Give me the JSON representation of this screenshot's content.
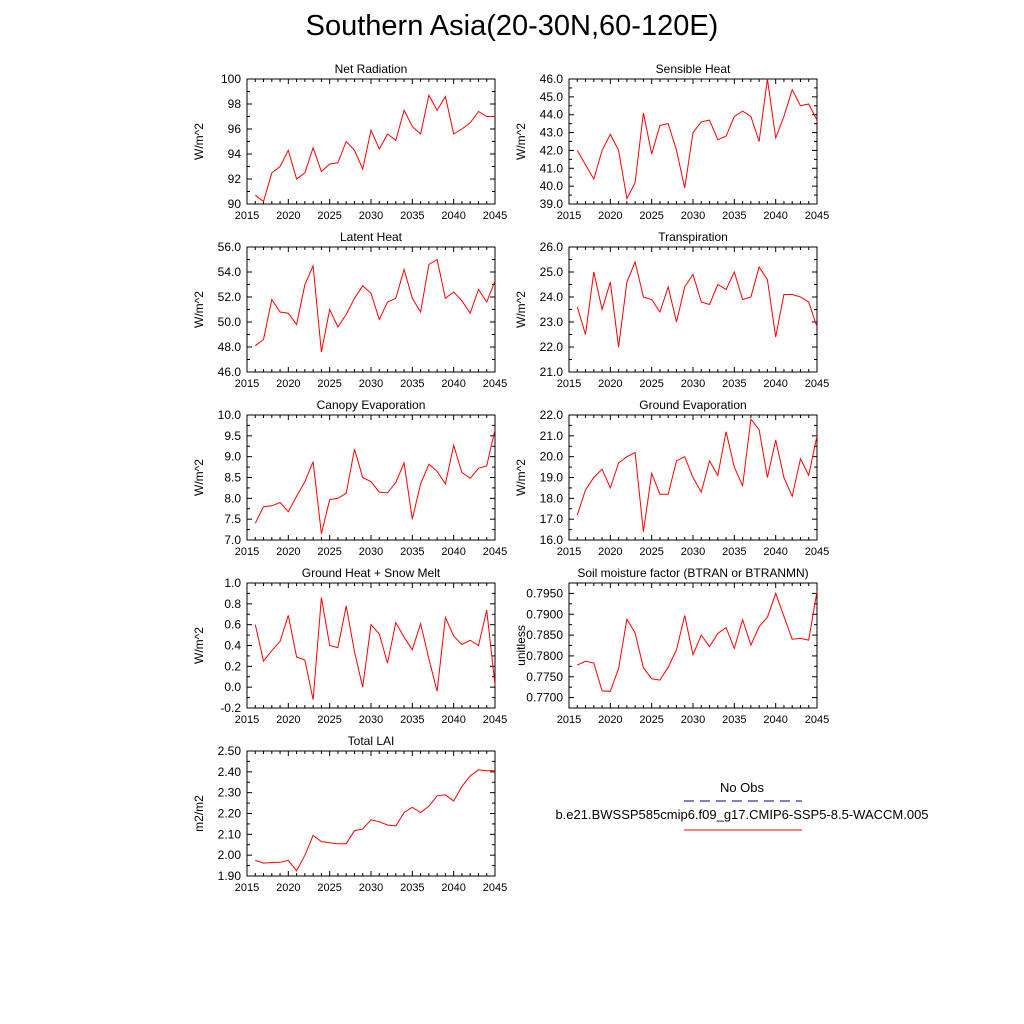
{
  "title": "Southern Asia(20-30N,60-120E)",
  "colors": {
    "series": "#ff0000",
    "obs": "#00008b",
    "axis": "#000000"
  },
  "legend": {
    "obs_label": "No Obs",
    "model_label": "b.e21.BWSSP585cmip6.f09_g17.CMIP6-SSP5-8.5-WACCM.005"
  },
  "chart_data": [
    {
      "type": "line",
      "title": "Net Radiation",
      "ylabel": "W/m^2",
      "xlim": [
        2015,
        2045
      ],
      "ylim": [
        90,
        100
      ],
      "xticks": [
        2015,
        2020,
        2025,
        2030,
        2035,
        2040,
        2045
      ],
      "yticks": [
        "90",
        "92",
        "94",
        "96",
        "98",
        "100"
      ],
      "x": [
        2016,
        2017,
        2018,
        2019,
        2020,
        2021,
        2022,
        2023,
        2024,
        2025,
        2026,
        2027,
        2028,
        2029,
        2030,
        2031,
        2032,
        2033,
        2034,
        2035,
        2036,
        2037,
        2038,
        2039,
        2040,
        2041,
        2042,
        2043,
        2044,
        2045
      ],
      "y": [
        90.7,
        90.2,
        92.5,
        93.0,
        94.3,
        92.0,
        92.5,
        94.5,
        92.6,
        93.2,
        93.3,
        95.0,
        94.3,
        92.8,
        95.9,
        94.4,
        95.6,
        95.1,
        97.5,
        96.2,
        95.6,
        98.7,
        97.5,
        98.6,
        95.6,
        96.0,
        96.5,
        97.4,
        97.0,
        97.0
      ]
    },
    {
      "type": "line",
      "title": "Sensible Heat",
      "ylabel": "W/m^2",
      "xlim": [
        2015,
        2045
      ],
      "ylim": [
        39.0,
        46.0
      ],
      "xticks": [
        2015,
        2020,
        2025,
        2030,
        2035,
        2040,
        2045
      ],
      "yticks": [
        "39.0",
        "40.0",
        "41.0",
        "42.0",
        "43.0",
        "44.0",
        "45.0",
        "46.0"
      ],
      "x": [
        2016,
        2017,
        2018,
        2019,
        2020,
        2021,
        2022,
        2023,
        2024,
        2025,
        2026,
        2027,
        2028,
        2029,
        2030,
        2031,
        2032,
        2033,
        2034,
        2035,
        2036,
        2037,
        2038,
        2039,
        2040,
        2041,
        2042,
        2043,
        2044,
        2045
      ],
      "y": [
        42.0,
        41.2,
        40.4,
        42.0,
        42.9,
        42.0,
        39.3,
        40.2,
        44.1,
        41.8,
        43.4,
        43.5,
        42.0,
        39.9,
        43.0,
        43.6,
        43.7,
        42.6,
        42.8,
        43.9,
        44.2,
        43.9,
        42.5,
        46.0,
        42.7,
        43.9,
        45.4,
        44.5,
        44.6,
        43.7
      ]
    },
    {
      "type": "line",
      "title": "Latent Heat",
      "ylabel": "W/m^2",
      "xlim": [
        2015,
        2045
      ],
      "ylim": [
        46.0,
        56.0
      ],
      "xticks": [
        2015,
        2020,
        2025,
        2030,
        2035,
        2040,
        2045
      ],
      "yticks": [
        "46.0",
        "48.0",
        "50.0",
        "52.0",
        "54.0",
        "56.0"
      ],
      "x": [
        2016,
        2017,
        2018,
        2019,
        2020,
        2021,
        2022,
        2023,
        2024,
        2025,
        2026,
        2027,
        2028,
        2029,
        2030,
        2031,
        2032,
        2033,
        2034,
        2035,
        2036,
        2037,
        2038,
        2039,
        2040,
        2041,
        2042,
        2043,
        2044,
        2045
      ],
      "y": [
        48.1,
        48.6,
        51.8,
        50.8,
        50.7,
        49.8,
        53.0,
        54.5,
        47.6,
        51.0,
        49.6,
        50.6,
        51.9,
        52.9,
        52.3,
        50.2,
        51.6,
        51.9,
        54.2,
        51.9,
        50.8,
        54.6,
        55.0,
        51.9,
        52.4,
        51.7,
        50.7,
        52.6,
        51.6,
        53.3
      ]
    },
    {
      "type": "line",
      "title": "Transpiration",
      "ylabel": "W/m^2",
      "xlim": [
        2015,
        2045
      ],
      "ylim": [
        21.0,
        26.0
      ],
      "xticks": [
        2015,
        2020,
        2025,
        2030,
        2035,
        2040,
        2045
      ],
      "yticks": [
        "21.0",
        "22.0",
        "23.0",
        "24.0",
        "25.0",
        "26.0"
      ],
      "x": [
        2016,
        2017,
        2018,
        2019,
        2020,
        2021,
        2022,
        2023,
        2024,
        2025,
        2026,
        2027,
        2028,
        2029,
        2030,
        2031,
        2032,
        2033,
        2034,
        2035,
        2036,
        2037,
        2038,
        2039,
        2040,
        2041,
        2042,
        2043,
        2044,
        2045
      ],
      "y": [
        23.6,
        22.5,
        25.0,
        23.5,
        24.6,
        22.0,
        24.6,
        25.4,
        24.0,
        23.9,
        23.4,
        24.4,
        23.0,
        24.4,
        24.9,
        23.8,
        23.7,
        24.5,
        24.3,
        25.0,
        23.9,
        24.0,
        25.2,
        24.7,
        22.4,
        24.1,
        24.1,
        24.0,
        23.8,
        22.8
      ]
    },
    {
      "type": "line",
      "title": "Canopy Evaporation",
      "ylabel": "W/m^2",
      "xlim": [
        2015,
        2045
      ],
      "ylim": [
        7.0,
        10.0
      ],
      "xticks": [
        2015,
        2020,
        2025,
        2030,
        2035,
        2040,
        2045
      ],
      "yticks": [
        "7.0",
        "7.5",
        "8.0",
        "8.5",
        "9.0",
        "9.5",
        "10.0"
      ],
      "x": [
        2016,
        2017,
        2018,
        2019,
        2020,
        2021,
        2022,
        2023,
        2024,
        2025,
        2026,
        2027,
        2028,
        2029,
        2030,
        2031,
        2032,
        2033,
        2034,
        2035,
        2036,
        2037,
        2038,
        2039,
        2040,
        2041,
        2042,
        2043,
        2044,
        2045
      ],
      "y": [
        7.4,
        7.8,
        7.82,
        7.9,
        7.68,
        8.05,
        8.4,
        8.88,
        7.15,
        7.97,
        8.0,
        8.12,
        9.18,
        8.5,
        8.4,
        8.15,
        8.13,
        8.38,
        8.85,
        7.5,
        8.35,
        8.82,
        8.65,
        8.35,
        9.27,
        8.62,
        8.48,
        8.72,
        8.78,
        9.65
      ]
    },
    {
      "type": "line",
      "title": "Ground Evaporation",
      "ylabel": "W/m^2",
      "xlim": [
        2015,
        2045
      ],
      "ylim": [
        16.0,
        22.0
      ],
      "xticks": [
        2015,
        2020,
        2025,
        2030,
        2035,
        2040,
        2045
      ],
      "yticks": [
        "16.0",
        "17.0",
        "18.0",
        "19.0",
        "20.0",
        "21.0",
        "22.0"
      ],
      "x": [
        2016,
        2017,
        2018,
        2019,
        2020,
        2021,
        2022,
        2023,
        2024,
        2025,
        2026,
        2027,
        2028,
        2029,
        2030,
        2031,
        2032,
        2033,
        2034,
        2035,
        2036,
        2037,
        2038,
        2039,
        2040,
        2041,
        2042,
        2043,
        2044,
        2045
      ],
      "y": [
        17.2,
        18.4,
        19.0,
        19.4,
        18.5,
        19.7,
        20.0,
        20.2,
        16.4,
        19.2,
        18.2,
        18.2,
        19.8,
        20.0,
        19.0,
        18.3,
        19.8,
        19.1,
        21.2,
        19.5,
        18.6,
        21.8,
        21.3,
        19.0,
        20.8,
        19.0,
        18.1,
        19.9,
        19.1,
        21.0
      ]
    },
    {
      "type": "line",
      "title": "Ground Heat + Snow Melt",
      "ylabel": "W/m^2",
      "xlim": [
        2015,
        2045
      ],
      "ylim": [
        -0.2,
        1.0
      ],
      "xticks": [
        2015,
        2020,
        2025,
        2030,
        2035,
        2040,
        2045
      ],
      "yticks": [
        "-0.2",
        "0.0",
        "0.2",
        "0.4",
        "0.6",
        "0.8",
        "1.0"
      ],
      "x": [
        2016,
        2017,
        2018,
        2019,
        2020,
        2021,
        2022,
        2023,
        2024,
        2025,
        2026,
        2027,
        2028,
        2029,
        2030,
        2031,
        2032,
        2033,
        2034,
        2035,
        2036,
        2037,
        2038,
        2039,
        2040,
        2041,
        2042,
        2043,
        2044,
        2045
      ],
      "y": [
        0.6,
        0.25,
        0.35,
        0.44,
        0.69,
        0.29,
        0.26,
        -0.12,
        0.86,
        0.4,
        0.38,
        0.78,
        0.34,
        0.0,
        0.6,
        0.51,
        0.23,
        0.62,
        0.48,
        0.36,
        0.61,
        0.27,
        -0.04,
        0.67,
        0.49,
        0.41,
        0.45,
        0.4,
        0.74,
        0.02
      ]
    },
    {
      "type": "line",
      "title": "Soil moisture factor (BTRAN or BTRANMN)",
      "ylabel": "unitless",
      "xlim": [
        2015,
        2045
      ],
      "ylim": [
        0.7675,
        0.7975
      ],
      "xticks": [
        2015,
        2020,
        2025,
        2030,
        2035,
        2040,
        2045
      ],
      "yticks": [
        "0.7700",
        "0.7750",
        "0.7800",
        "0.7850",
        "0.7900",
        "0.7950"
      ],
      "x": [
        2016,
        2017,
        2018,
        2019,
        2020,
        2021,
        2022,
        2023,
        2024,
        2025,
        2026,
        2027,
        2028,
        2029,
        2030,
        2031,
        2032,
        2033,
        2034,
        2035,
        2036,
        2037,
        2038,
        2039,
        2040,
        2041,
        2042,
        2043,
        2044,
        2045
      ],
      "y": [
        0.7778,
        0.7787,
        0.7783,
        0.7716,
        0.7715,
        0.777,
        0.7888,
        0.7855,
        0.7772,
        0.7745,
        0.7742,
        0.7773,
        0.7815,
        0.7897,
        0.7803,
        0.785,
        0.7822,
        0.7854,
        0.7868,
        0.7818,
        0.7887,
        0.7826,
        0.787,
        0.7893,
        0.795,
        0.7895,
        0.784,
        0.7842,
        0.7838,
        0.7955
      ]
    },
    {
      "type": "line",
      "title": "Total LAI",
      "ylabel": "m2/m2",
      "xlim": [
        2015,
        2045
      ],
      "ylim": [
        1.9,
        2.5
      ],
      "xticks": [
        2015,
        2020,
        2025,
        2030,
        2035,
        2040,
        2045
      ],
      "yticks": [
        "1.90",
        "2.00",
        "2.10",
        "2.20",
        "2.30",
        "2.40",
        "2.50"
      ],
      "x": [
        2016,
        2017,
        2018,
        2019,
        2020,
        2021,
        2022,
        2023,
        2024,
        2025,
        2026,
        2027,
        2028,
        2029,
        2030,
        2031,
        2032,
        2033,
        2034,
        2035,
        2036,
        2037,
        2038,
        2039,
        2040,
        2041,
        2042,
        2043,
        2044,
        2045
      ],
      "y": [
        1.975,
        1.962,
        1.965,
        1.966,
        1.975,
        1.925,
        2.0,
        2.095,
        2.065,
        2.06,
        2.055,
        2.055,
        2.118,
        2.125,
        2.17,
        2.16,
        2.145,
        2.14,
        2.205,
        2.23,
        2.205,
        2.235,
        2.285,
        2.29,
        2.26,
        2.33,
        2.38,
        2.41,
        2.405,
        2.405
      ]
    }
  ]
}
